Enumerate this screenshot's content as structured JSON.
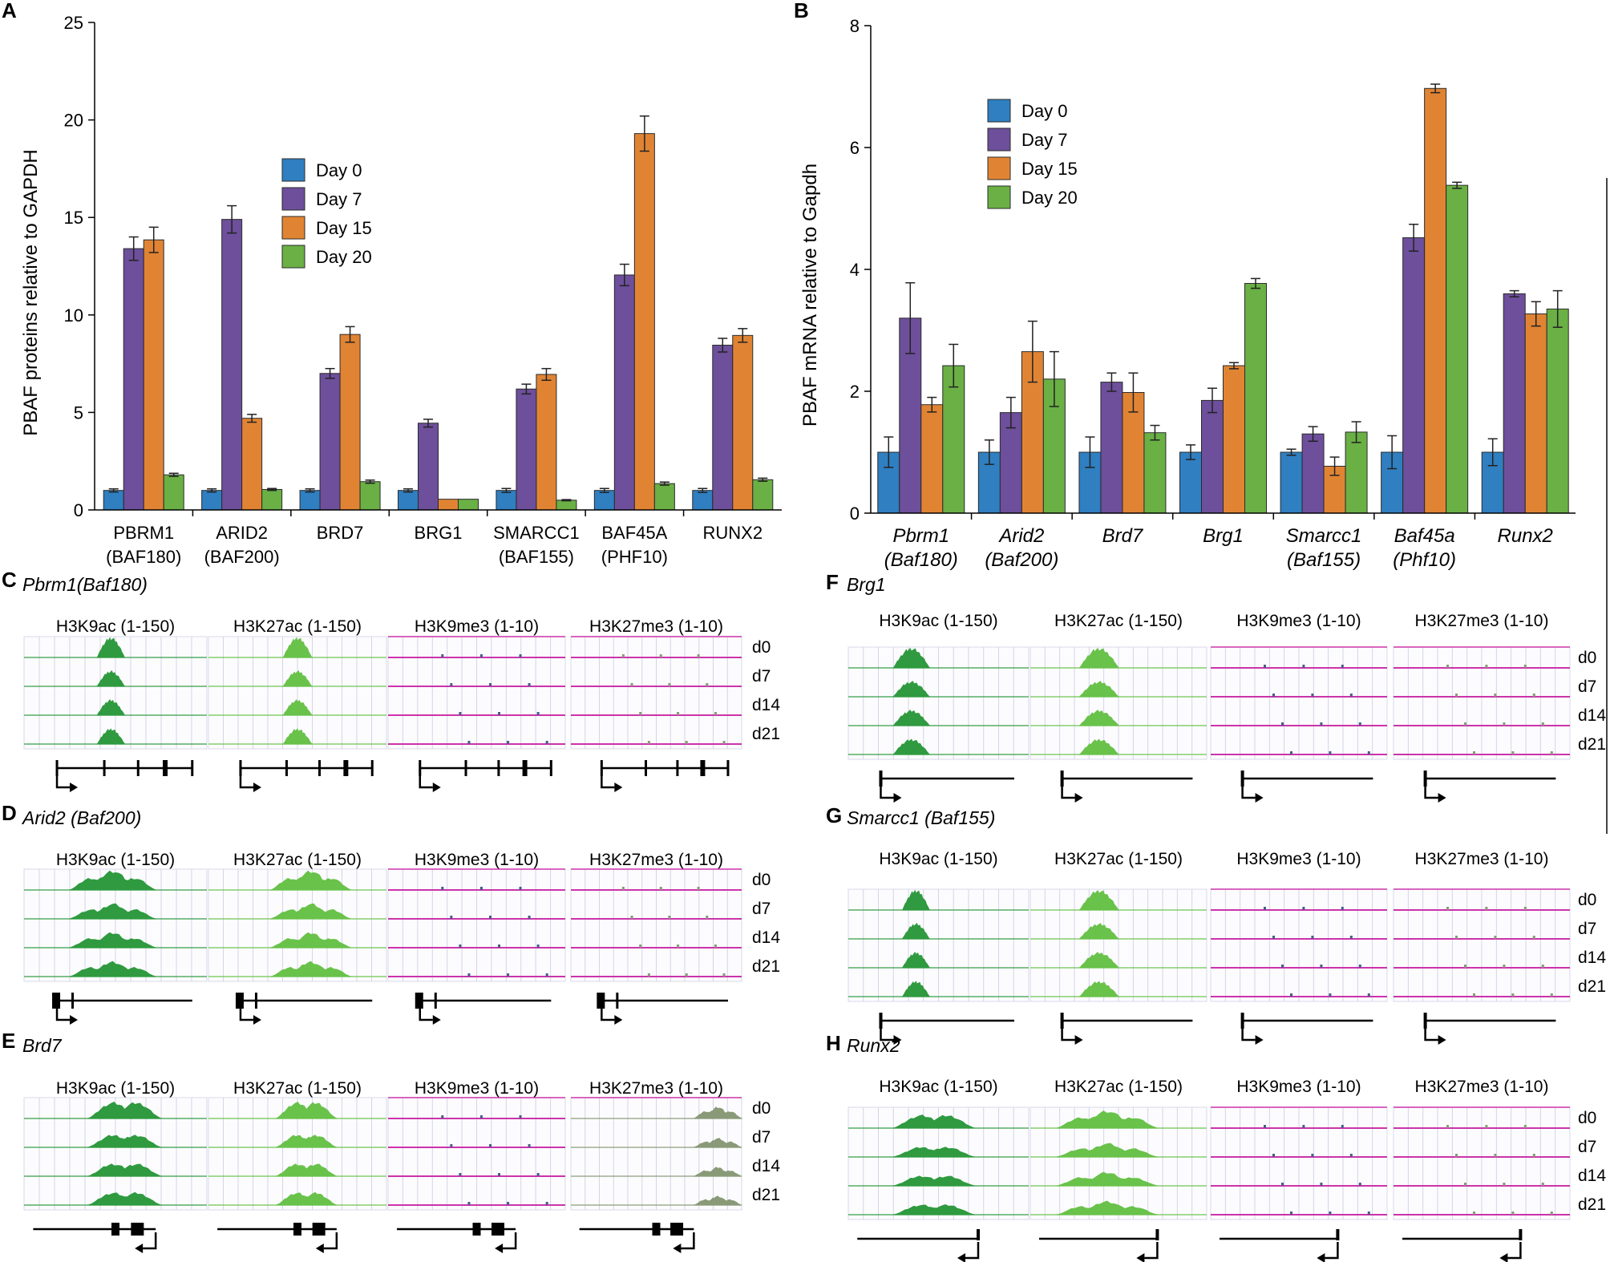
{
  "colors": {
    "day0": "#2f7fc1",
    "day7": "#6d4f9b",
    "day15": "#e08434",
    "day20": "#6ab045",
    "h3k9ac": "#2f9a3f",
    "h3k27ac": "#69c24a",
    "h3k9me3": "#4a5c8c",
    "h3k27me3": "#8a9a78",
    "baseline": "#cc33aa"
  },
  "chart_data": [
    {
      "panel": "A",
      "type": "bar",
      "ylabel": "PBAF proteins relative to GAPDH",
      "ylim": [
        0,
        25
      ],
      "yticks": [
        "0",
        "5",
        "10",
        "15",
        "20",
        "25"
      ],
      "categories": [
        {
          "line1": "PBRM1",
          "line2": "(BAF180)"
        },
        {
          "line1": "ARID2",
          "line2": "(BAF200)"
        },
        {
          "line1": "BRD7",
          "line2": ""
        },
        {
          "line1": "BRG1",
          "line2": ""
        },
        {
          "line1": "SMARCC1",
          "line2": "(BAF155)"
        },
        {
          "line1": "BAF45A",
          "line2": "(PHF10)"
        },
        {
          "line1": "RUNX2",
          "line2": ""
        }
      ],
      "series": [
        {
          "name": "Day 0",
          "values": [
            1.0,
            1.0,
            1.0,
            1.0,
            1.0,
            1.0,
            1.0
          ],
          "errors": [
            0.08,
            0.08,
            0.08,
            0.08,
            0.1,
            0.1,
            0.1
          ]
        },
        {
          "name": "Day 7",
          "values": [
            13.4,
            14.9,
            7.0,
            4.45,
            6.2,
            12.05,
            8.45
          ],
          "errors": [
            0.6,
            0.7,
            0.25,
            0.2,
            0.25,
            0.55,
            0.35
          ]
        },
        {
          "name": "Day 15",
          "values": [
            13.85,
            4.7,
            9.0,
            0.55,
            6.95,
            19.3,
            8.95
          ],
          "errors": [
            0.65,
            0.2,
            0.4,
            0.0,
            0.3,
            0.9,
            0.35
          ]
        },
        {
          "name": "Day 20",
          "values": [
            1.8,
            1.05,
            1.45,
            0.55,
            0.5,
            1.35,
            1.55
          ],
          "errors": [
            0.08,
            0.05,
            0.08,
            0.0,
            0.03,
            0.08,
            0.08
          ]
        }
      ]
    },
    {
      "panel": "B",
      "type": "bar",
      "ylabel": "PBAF mRNA relative to Gapdh",
      "ylim": [
        0,
        8
      ],
      "yticks": [
        "0",
        "2",
        "4",
        "6",
        "8"
      ],
      "categories": [
        {
          "line1": "Pbrm1",
          "line2": "(Baf180)"
        },
        {
          "line1": "Arid2",
          "line2": "(Baf200)"
        },
        {
          "line1": "Brd7",
          "line2": ""
        },
        {
          "line1": "Brg1",
          "line2": ""
        },
        {
          "line1": "Smarcc1",
          "line2": "(Baf155)"
        },
        {
          "line1": "Baf45a",
          "line2": "(Phf10)"
        },
        {
          "line1": "Runx2",
          "line2": ""
        }
      ],
      "series": [
        {
          "name": "Day 0",
          "values": [
            1.0,
            1.0,
            1.0,
            1.0,
            1.0,
            1.0,
            1.0
          ],
          "errors": [
            0.25,
            0.2,
            0.25,
            0.12,
            0.05,
            0.27,
            0.22
          ]
        },
        {
          "name": "Day 7",
          "values": [
            3.2,
            1.65,
            2.15,
            1.85,
            1.3,
            4.52,
            3.6
          ],
          "errors": [
            0.58,
            0.25,
            0.15,
            0.2,
            0.12,
            0.22,
            0.05
          ]
        },
        {
          "name": "Day 15",
          "values": [
            1.78,
            2.65,
            1.98,
            2.42,
            0.77,
            6.97,
            3.27
          ],
          "errors": [
            0.12,
            0.5,
            0.32,
            0.05,
            0.15,
            0.07,
            0.2
          ]
        },
        {
          "name": "Day 20",
          "values": [
            2.42,
            2.2,
            1.32,
            3.77,
            1.33,
            5.38,
            3.35
          ],
          "errors": [
            0.35,
            0.45,
            0.12,
            0.08,
            0.17,
            0.05,
            0.3
          ]
        }
      ]
    }
  ],
  "legend": [
    "Day 0",
    "Day 7",
    "Day 15",
    "Day 20"
  ],
  "track_panels": [
    {
      "letter": "C",
      "gene": "Pbrm1(Baf180)",
      "tracks": [
        "H3K9ac (1-150)",
        "H3K27ac (1-150)",
        "H3K9me3 (1-10)",
        "H3K27me3 (1-10)"
      ],
      "days": [
        "d0",
        "d7",
        "d14",
        "d21"
      ]
    },
    {
      "letter": "D",
      "gene": "Arid2 (Baf200)",
      "tracks": [
        "H3K9ac (1-150)",
        "H3K27ac (1-150)",
        "H3K9me3 (1-10)",
        "H3K27me3 (1-10)"
      ],
      "days": [
        "d0",
        "d7",
        "d14",
        "d21"
      ]
    },
    {
      "letter": "E",
      "gene": "Brd7",
      "tracks": [
        "H3K9ac (1-150)",
        "H3K27ac (1-150)",
        "H3K9me3 (1-10)",
        "H3K27me3 (1-10)"
      ],
      "days": [
        "d0",
        "d7",
        "d14",
        "d21"
      ]
    },
    {
      "letter": "F",
      "gene": "Brg1",
      "tracks": [
        "H3K9ac (1-150)",
        "H3K27ac (1-150)",
        "H3K9me3 (1-10)",
        "H3K27me3 (1-10)"
      ],
      "days": [
        "d0",
        "d7",
        "d14",
        "d21"
      ]
    },
    {
      "letter": "G",
      "gene": "Smarcc1 (Baf155)",
      "tracks": [
        "H3K9ac (1-150)",
        "H3K27ac (1-150)",
        "H3K9me3 (1-10)",
        "H3K27me3 (1-10)"
      ],
      "days": [
        "d0",
        "d7",
        "d14",
        "d21"
      ]
    },
    {
      "letter": "H",
      "gene": "Runx2",
      "tracks": [
        "H3K9ac (1-150)",
        "H3K27ac (1-150)",
        "H3K9me3 (1-10)",
        "H3K27me3 (1-10)"
      ],
      "days": [
        "d0",
        "d7",
        "d14",
        "d21"
      ]
    }
  ]
}
